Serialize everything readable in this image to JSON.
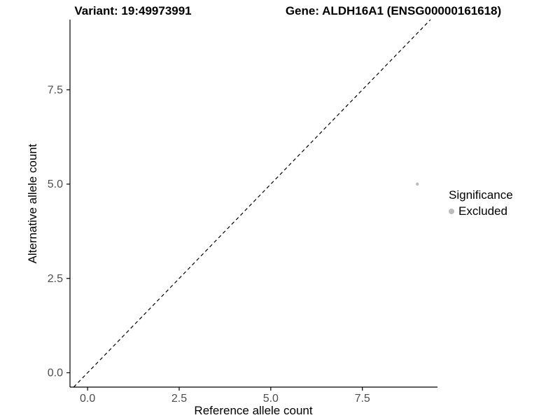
{
  "chart_data": {
    "type": "scatter",
    "title_variant": "Variant: 19:49973991",
    "title_gene": "Gene: ALDH16A1 (ENSG00000161618)",
    "title": "Variant: 19:49973991 / Gene: ALDH16A1 (ENSG00000161618)",
    "xlabel": "Reference allele count",
    "ylabel": "Alternative allele count",
    "xlim": [
      -0.48,
      9.55
    ],
    "ylim": [
      -0.38,
      9.36
    ],
    "xtick_values": [
      0,
      2.5,
      5,
      7.5
    ],
    "xtick_labels": [
      "0.0",
      "2.5",
      "5.0",
      "7.5"
    ],
    "ytick_values": [
      0,
      2.5,
      5,
      7.5
    ],
    "ytick_labels": [
      "0.0",
      "2.5",
      "5.0",
      "7.5"
    ],
    "grid": false,
    "legend_position": "right",
    "legend_title": "Significance",
    "identity_line": {
      "show": true,
      "style": "dashed",
      "color": "#000000"
    },
    "series": [
      {
        "name": "Excluded",
        "color": "#bdbdbd",
        "points": [
          {
            "x": 9,
            "y": 5
          }
        ]
      }
    ],
    "colors": {
      "axis": "#000000",
      "tick_label": "#4d4d4d",
      "background": "#ffffff"
    }
  }
}
